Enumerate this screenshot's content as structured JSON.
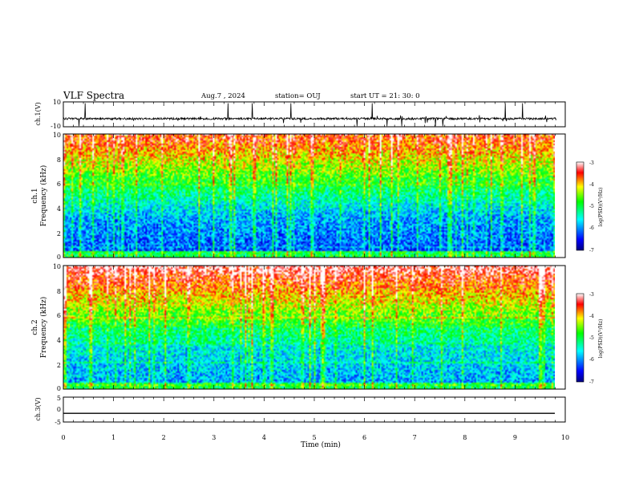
{
  "header": {
    "title": "VLF Spectra",
    "date": "Aug.7 , 2024",
    "station": "station= OUJ",
    "start": "start UT =  21: 30: 0"
  },
  "chart_data": [
    {
      "type": "line",
      "ylabel": "ch.1(V)",
      "ylim": [
        -10,
        10
      ],
      "yticks": [
        "10",
        "-10"
      ],
      "description_series": "waveform",
      "baseline": -3.5,
      "xlim": [
        0,
        10
      ]
    },
    {
      "type": "heatmap",
      "ylabel_line1": "ch.1",
      "ylabel_line2": "Frequency (kHz)",
      "ylim": [
        0,
        10
      ],
      "yticks": [
        "0",
        "2",
        "4",
        "6",
        "8",
        "10"
      ],
      "xlim": [
        0,
        9.82
      ],
      "colorbar": {
        "label": "log(PSD)(V²/Hz)",
        "ticks": [
          "-3",
          "-4",
          "-5",
          "-6",
          "-7"
        ],
        "range": [
          -7,
          -3
        ]
      }
    },
    {
      "type": "heatmap",
      "ylabel_line1": "ch.2",
      "ylabel_line2": "Frequency (kHz)",
      "ylim": [
        0,
        10
      ],
      "yticks": [
        "0",
        "2",
        "4",
        "6",
        "8",
        "10"
      ],
      "xlim": [
        0,
        9.82
      ],
      "colorbar": {
        "label": "log(PSD)(V²/Hz)",
        "ticks": [
          "-3",
          "-4",
          "-5",
          "-6",
          "-7"
        ],
        "range": [
          -7,
          -3
        ]
      }
    },
    {
      "type": "line",
      "ylabel": "ch.3(V)",
      "ylim": [
        -5,
        5
      ],
      "yticks": [
        "5",
        "0",
        "-5"
      ],
      "constant_value": -1.5,
      "xlim": [
        0,
        9.82
      ],
      "xlabel": "Time (min)",
      "xticks": [
        "0",
        "1",
        "2",
        "3",
        "4",
        "5",
        "6",
        "7",
        "8",
        "9",
        "10"
      ]
    }
  ]
}
